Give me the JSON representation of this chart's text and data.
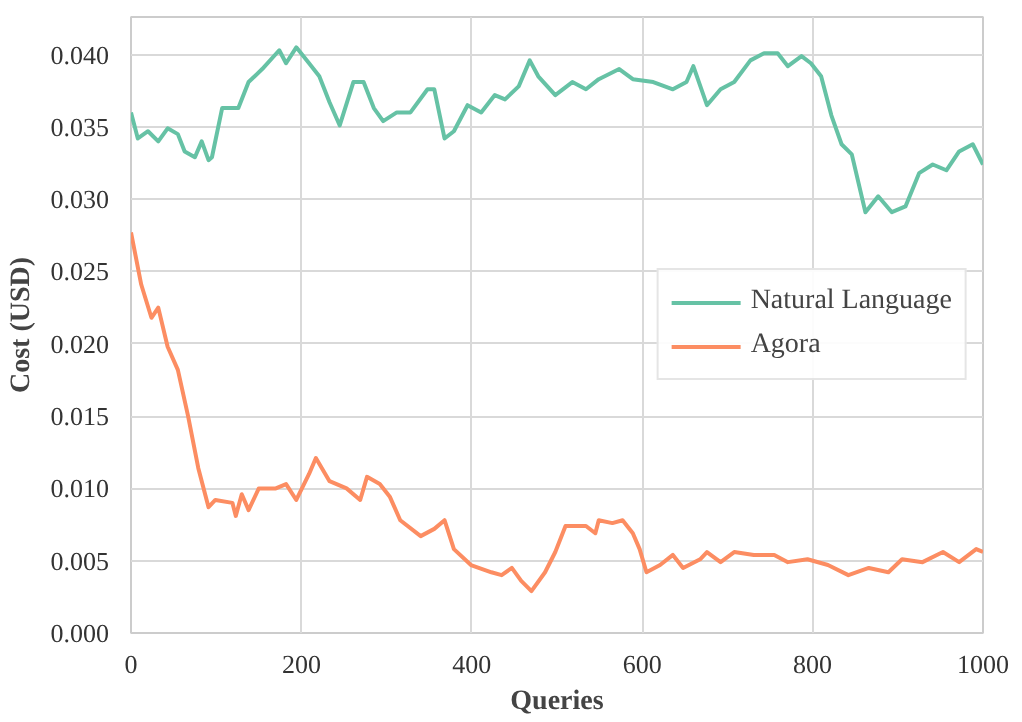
{
  "chart_data": {
    "type": "line",
    "xlabel": "Queries",
    "ylabel": "Cost (USD)",
    "xlim": [
      0,
      1000
    ],
    "ylim": [
      0,
      0.0426
    ],
    "xticks": [
      0,
      200,
      400,
      600,
      800,
      1000
    ],
    "yticks": [
      {
        "value": 0,
        "label": "0.000"
      },
      {
        "value": 0.005,
        "label": "0.005"
      },
      {
        "value": 0.01,
        "label": "0.010"
      },
      {
        "value": 0.015,
        "label": "0.015"
      },
      {
        "value": 0.02,
        "label": "0.020"
      },
      {
        "value": 0.025,
        "label": "0.025"
      },
      {
        "value": 0.03,
        "label": "0.030"
      },
      {
        "value": 0.035,
        "label": "0.035"
      },
      {
        "value": 0.04,
        "label": "0.040"
      }
    ],
    "grid": true,
    "legend": "right",
    "line_style": "solid",
    "series": [
      {
        "name": "Natural Language",
        "color": "#66c2a5",
        "x": [
          0,
          8,
          20,
          32,
          43,
          55,
          63,
          75,
          83,
          91,
          95,
          107,
          126,
          138,
          154,
          174,
          182,
          194,
          209,
          221,
          233,
          245,
          261,
          273,
          285,
          296,
          312,
          328,
          348,
          356,
          368,
          379,
          395,
          411,
          427,
          439,
          455,
          468,
          478,
          498,
          518,
          534,
          549,
          573,
          589,
          613,
          636,
          652,
          660,
          676,
          692,
          708,
          727,
          743,
          759,
          771,
          787,
          798,
          810,
          822,
          834,
          846,
          862,
          877,
          893,
          909,
          925,
          941,
          957,
          972,
          988,
          1000
        ],
        "values": [
          0.036,
          0.0342,
          0.0347,
          0.034,
          0.0349,
          0.0345,
          0.0333,
          0.0329,
          0.034,
          0.0327,
          0.0329,
          0.0363,
          0.0363,
          0.0381,
          0.039,
          0.0403,
          0.0394,
          0.0405,
          0.0394,
          0.0385,
          0.0367,
          0.0351,
          0.0381,
          0.0381,
          0.0363,
          0.0354,
          0.036,
          0.036,
          0.0376,
          0.0376,
          0.0342,
          0.0347,
          0.0365,
          0.036,
          0.0372,
          0.0369,
          0.0378,
          0.0396,
          0.0385,
          0.0372,
          0.0381,
          0.0376,
          0.0383,
          0.039,
          0.0383,
          0.0381,
          0.0376,
          0.0381,
          0.0392,
          0.0365,
          0.0376,
          0.0381,
          0.0396,
          0.0401,
          0.0401,
          0.0392,
          0.0399,
          0.0394,
          0.0385,
          0.0358,
          0.0338,
          0.0331,
          0.0291,
          0.0302,
          0.0291,
          0.0295,
          0.0318,
          0.0324,
          0.032,
          0.0333,
          0.0338,
          0.0324
        ]
      },
      {
        "name": "Agora",
        "color": "#fc8d62",
        "x": [
          0,
          12,
          24,
          32,
          43,
          55,
          67,
          79,
          91,
          99,
          119,
          123,
          130,
          138,
          150,
          170,
          182,
          194,
          209,
          217,
          233,
          253,
          269,
          277,
          292,
          304,
          316,
          340,
          356,
          368,
          379,
          399,
          423,
          435,
          447,
          458,
          470,
          486,
          498,
          510,
          534,
          545,
          549,
          565,
          577,
          589,
          597,
          605,
          621,
          636,
          648,
          668,
          676,
          692,
          708,
          731,
          755,
          771,
          794,
          818,
          842,
          866,
          889,
          905,
          929,
          953,
          972,
          992,
          1000
        ],
        "values": [
          0.0277,
          0.0241,
          0.0218,
          0.0225,
          0.0198,
          0.0182,
          0.015,
          0.0114,
          0.0087,
          0.0092,
          0.009,
          0.0081,
          0.0096,
          0.0085,
          0.01,
          0.01,
          0.0103,
          0.0092,
          0.011,
          0.0121,
          0.0105,
          0.01,
          0.0092,
          0.0108,
          0.0103,
          0.0094,
          0.0078,
          0.0067,
          0.0072,
          0.0078,
          0.0058,
          0.0047,
          0.0042,
          0.004,
          0.0045,
          0.0036,
          0.0029,
          0.0042,
          0.0056,
          0.0074,
          0.0074,
          0.0069,
          0.0078,
          0.0076,
          0.0078,
          0.0069,
          0.0058,
          0.0042,
          0.0047,
          0.0054,
          0.0045,
          0.0051,
          0.0056,
          0.0049,
          0.0056,
          0.0054,
          0.0054,
          0.0049,
          0.0051,
          0.0047,
          0.004,
          0.0045,
          0.0042,
          0.0051,
          0.0049,
          0.0056,
          0.0049,
          0.0058,
          0.0056
        ]
      }
    ]
  }
}
